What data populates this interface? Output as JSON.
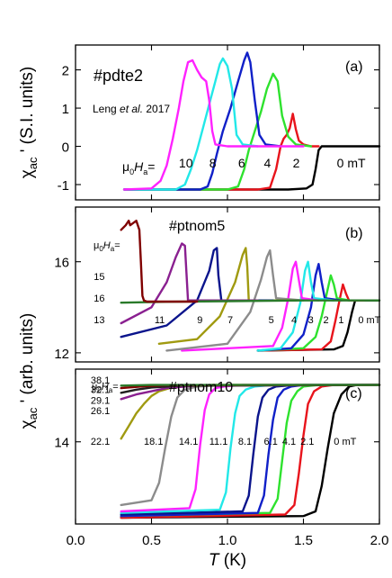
{
  "colors": {
    "m0": "#000000",
    "m2": "#e8141c",
    "m4": "#2ee22e",
    "m6": "#1020c8",
    "m8": "#22e8e8",
    "m10": "#ff22ff",
    "gray": "#8c8c8c",
    "olive": "#a09a10",
    "navy": "#0a148c",
    "purple": "#8a2090",
    "maroon": "#800000"
  },
  "chart_data": [
    {
      "type": "line",
      "panel": "(a)",
      "sample": "#pdte2",
      "note_prefix": "Leng ",
      "note_italic": "et al.",
      "note_suffix": " 2017",
      "ylabel_main": "χ",
      "ylabel_sub": "ac",
      "ylabel_rest": " ' (S.I. units)",
      "ylim": [
        -1.4,
        2.65
      ],
      "xlim": [
        0.0,
        2.0
      ],
      "yticks": [
        -1,
        0,
        1,
        2
      ],
      "yticklabels": [
        "-1",
        "0",
        "1",
        "2"
      ],
      "field_prefix_a": "μ",
      "field_prefix_b": "0",
      "field_prefix_c": "H",
      "field_prefix_d": "a",
      "field_prefix_e": "=",
      "series": [
        {
          "field": "0 mT",
          "color": "#000000",
          "x": [
            0.32,
            1.4,
            1.52,
            1.56,
            1.58,
            1.6,
            1.62,
            1.64,
            1.7,
            2.0
          ],
          "y": [
            -1.13,
            -1.13,
            -1.1,
            -1.0,
            -0.6,
            -0.1,
            0,
            0,
            0,
            0
          ]
        },
        {
          "field": "2",
          "color": "#e8141c",
          "x": [
            0.32,
            1.2,
            1.28,
            1.32,
            1.35,
            1.37,
            1.39,
            1.41,
            1.43,
            1.45,
            1.47,
            1.5,
            1.55,
            1.6
          ],
          "y": [
            -1.13,
            -1.13,
            -1.08,
            -0.6,
            0,
            0.2,
            0.3,
            0.48,
            0.85,
            0.45,
            0.15,
            0.05,
            0,
            0
          ]
        },
        {
          "field": "4",
          "color": "#2ee22e",
          "x": [
            0.32,
            1.0,
            1.07,
            1.11,
            1.14,
            1.18,
            1.22,
            1.26,
            1.3,
            1.33,
            1.36,
            1.4,
            1.45,
            1.55
          ],
          "y": [
            -1.13,
            -1.13,
            -1.05,
            -0.6,
            -0.1,
            0.4,
            0.9,
            1.5,
            1.9,
            1.7,
            0.8,
            0.25,
            0.05,
            0
          ]
        },
        {
          "field": "6",
          "color": "#1020c8",
          "x": [
            0.32,
            0.82,
            0.87,
            0.9,
            0.93,
            0.97,
            1.02,
            1.07,
            1.11,
            1.13,
            1.15,
            1.18,
            1.21,
            1.25,
            1.35
          ],
          "y": [
            -1.13,
            -1.13,
            -1.05,
            -0.7,
            -0.2,
            0.4,
            1.0,
            1.7,
            2.25,
            2.45,
            2.2,
            1.2,
            0.3,
            0.05,
            0
          ]
        },
        {
          "field": "8",
          "color": "#22e8e8",
          "x": [
            0.32,
            0.66,
            0.72,
            0.76,
            0.8,
            0.84,
            0.88,
            0.92,
            0.95,
            0.97,
            1.0,
            1.03,
            1.06,
            1.1,
            1.2
          ],
          "y": [
            -1.13,
            -1.13,
            -1.0,
            -0.6,
            -0.1,
            0.5,
            1.1,
            1.7,
            2.15,
            2.3,
            2.1,
            1.5,
            0.3,
            0.05,
            0
          ]
        },
        {
          "field": "10",
          "color": "#ff22ff",
          "x": [
            0.32,
            0.5,
            0.56,
            0.6,
            0.64,
            0.68,
            0.71,
            0.74,
            0.77,
            0.8,
            0.83,
            0.86,
            0.88,
            0.9,
            0.92,
            1.0,
            1.5
          ],
          "y": [
            -1.13,
            -1.1,
            -0.9,
            -0.5,
            0.2,
            1.0,
            1.7,
            2.2,
            2.25,
            2.0,
            1.8,
            1.7,
            1.2,
            0.4,
            0.05,
            0,
            0
          ]
        }
      ]
    },
    {
      "type": "line",
      "panel": "(b)",
      "sample": "#ptnom5",
      "ylabel_main": "χ",
      "ylabel_sub": "ac",
      "ylabel_rest": " ' (arb. units)",
      "ylim": [
        11.6,
        18.4
      ],
      "xlim": [
        0.0,
        2.0
      ],
      "yticks": [
        12,
        16
      ],
      "yticklabels": [
        "12",
        "16"
      ],
      "field_prefix_a": "μ",
      "field_prefix_b": "0",
      "field_prefix_c": "H",
      "field_prefix_d": "a",
      "field_prefix_e": "=",
      "series": [
        {
          "field": "0 mT",
          "color": "#000000",
          "x": [
            1.2,
            1.7,
            1.76,
            1.79,
            1.82,
            1.84,
            1.9,
            2.0
          ],
          "y": [
            12.1,
            12.15,
            12.3,
            12.9,
            13.8,
            14.3,
            14.3,
            14.3
          ]
        },
        {
          "field": "1",
          "color": "#e8141c",
          "x": [
            1.2,
            1.62,
            1.68,
            1.71,
            1.74,
            1.76,
            1.78,
            1.8,
            1.9
          ],
          "y": [
            12.1,
            12.15,
            12.5,
            13.4,
            14.4,
            15.0,
            14.6,
            14.3,
            14.3
          ]
        },
        {
          "field": "2",
          "color": "#2ee22e",
          "x": [
            1.2,
            1.5,
            1.58,
            1.62,
            1.66,
            1.68,
            1.7,
            1.72,
            1.8
          ],
          "y": [
            12.1,
            12.2,
            12.7,
            13.6,
            14.8,
            15.4,
            15.0,
            14.4,
            14.3
          ]
        },
        {
          "field": "3",
          "color": "#1020c8",
          "x": [
            1.2,
            1.42,
            1.5,
            1.55,
            1.58,
            1.6,
            1.62,
            1.64,
            1.75
          ],
          "y": [
            12.1,
            12.2,
            12.8,
            14.0,
            15.4,
            15.9,
            15.1,
            14.4,
            14.3
          ]
        },
        {
          "field": "4",
          "color": "#22e8e8",
          "x": [
            1.2,
            1.35,
            1.43,
            1.48,
            1.51,
            1.53,
            1.55,
            1.57,
            1.7
          ],
          "y": [
            12.1,
            12.2,
            12.9,
            14.2,
            15.6,
            16.0,
            15.1,
            14.4,
            14.3
          ]
        },
        {
          "field": "",
          "color": "#ff22ff",
          "x": [
            0.7,
            1.3,
            1.36,
            1.4,
            1.43,
            1.45,
            1.47,
            1.49,
            1.6
          ],
          "y": [
            12.1,
            12.3,
            13.1,
            14.4,
            15.7,
            16.0,
            15.2,
            14.4,
            14.3
          ]
        },
        {
          "field": "5",
          "color": "#8c8c8c",
          "x": [
            0.6,
            1.0,
            1.15,
            1.22,
            1.26,
            1.28,
            1.3,
            1.32,
            1.5
          ],
          "y": [
            12.1,
            12.4,
            13.8,
            15.2,
            16.2,
            16.5,
            15.4,
            14.4,
            14.3
          ]
        },
        {
          "field": "7",
          "color": "#a09a10",
          "x": [
            0.55,
            0.8,
            0.95,
            1.05,
            1.1,
            1.12,
            1.13,
            1.14,
            1.2,
            1.45
          ],
          "y": [
            12.4,
            12.6,
            13.6,
            15.1,
            16.3,
            16.6,
            15.8,
            14.3,
            14.3,
            14.3
          ]
        },
        {
          "field": "9",
          "color": "#0a148c",
          "x": [
            0.3,
            0.6,
            0.8,
            0.88,
            0.91,
            0.93,
            0.94,
            0.96,
            1.0,
            1.3
          ],
          "y": [
            12.7,
            13.2,
            14.3,
            15.6,
            16.5,
            16.6,
            15.4,
            14.3,
            14.3,
            14.3
          ]
        },
        {
          "field": "11",
          "color": "#8a2090",
          "x": [
            0.3,
            0.5,
            0.6,
            0.66,
            0.7,
            0.72,
            0.73,
            0.74,
            0.8,
            1.2
          ],
          "y": [
            13.3,
            14.0,
            15.1,
            16.2,
            16.8,
            16.7,
            15.5,
            14.3,
            14.3,
            14.3
          ]
        },
        {
          "field": "16",
          "color": "#2a7a2a",
          "x": [
            0.3,
            0.6,
            1.0,
            1.5,
            2.0
          ],
          "y": [
            14.2,
            14.24,
            14.27,
            14.3,
            14.3
          ]
        },
        {
          "field": "15",
          "color": "#800000",
          "x": [
            0.3,
            0.33,
            0.35,
            0.36,
            0.38,
            0.4,
            0.42,
            0.43,
            0.44,
            0.45,
            0.47,
            0.6,
            0.8
          ],
          "y": [
            17.4,
            17.6,
            17.8,
            17.6,
            17.7,
            17.8,
            17.4,
            16.0,
            14.5,
            14.3,
            14.25,
            14.25,
            14.25
          ]
        }
      ]
    },
    {
      "type": "line",
      "panel": "(c)",
      "sample": "#ptnom10",
      "ylabel_main": "χ",
      "ylabel_sub": "ac",
      "ylabel_rest": " '",
      "ylim": [
        11.4,
        16.3
      ],
      "xlim": [
        0.0,
        2.0
      ],
      "yticks": [
        14
      ],
      "yticklabels": [
        "14"
      ],
      "xticks": [
        0.0,
        0.5,
        1.0,
        1.5,
        2.0
      ],
      "xticklabels": [
        "0.0",
        "0.5",
        "1.0",
        "1.5",
        "2.0"
      ],
      "xlabel_main": "T",
      "xlabel_rest": " (K)",
      "field_prefix_a": "μ",
      "field_prefix_b": "0",
      "field_prefix_c": "H",
      "field_prefix_d": "a",
      "field_prefix_e": "=",
      "series": [
        {
          "field": "0 mT",
          "color": "#000000",
          "x": [
            0.3,
            1.5,
            1.58,
            1.62,
            1.66,
            1.7,
            1.75,
            1.8,
            1.85,
            2.0
          ],
          "y": [
            11.6,
            11.65,
            11.8,
            12.6,
            13.8,
            14.9,
            15.5,
            15.75,
            15.8,
            15.8
          ]
        },
        {
          "field": "2.1",
          "color": "#e8141c",
          "x": [
            0.3,
            1.38,
            1.44,
            1.47,
            1.5,
            1.53,
            1.57,
            1.62,
            1.7,
            2.0
          ],
          "y": [
            11.6,
            11.7,
            12.0,
            13.0,
            14.2,
            15.2,
            15.6,
            15.75,
            15.8,
            15.8
          ]
        },
        {
          "field": "4.1",
          "color": "#2ee22e",
          "x": [
            0.3,
            1.28,
            1.33,
            1.36,
            1.39,
            1.42,
            1.46,
            1.5,
            1.6,
            2.0
          ],
          "y": [
            11.65,
            11.75,
            12.2,
            13.4,
            14.6,
            15.3,
            15.6,
            15.75,
            15.8,
            15.8
          ]
        },
        {
          "field": "6.1",
          "color": "#1020c8",
          "x": [
            0.3,
            1.2,
            1.24,
            1.27,
            1.3,
            1.33,
            1.37,
            1.42,
            1.5,
            2.0
          ],
          "y": [
            11.65,
            11.75,
            12.3,
            13.6,
            14.7,
            15.4,
            15.65,
            15.75,
            15.8,
            15.8
          ]
        },
        {
          "field": "8.1",
          "color": "#0a148c",
          "x": [
            0.3,
            1.1,
            1.14,
            1.17,
            1.2,
            1.23,
            1.27,
            1.32,
            1.45,
            2.0
          ],
          "y": [
            11.7,
            11.8,
            12.3,
            13.6,
            14.8,
            15.4,
            15.65,
            15.75,
            15.8,
            15.8
          ]
        },
        {
          "field": "11.1",
          "color": "#22e8e8",
          "x": [
            0.3,
            0.95,
            0.99,
            1.02,
            1.05,
            1.08,
            1.12,
            1.18,
            1.3,
            2.0
          ],
          "y": [
            11.75,
            11.85,
            12.4,
            13.8,
            14.9,
            15.45,
            15.65,
            15.75,
            15.8,
            15.8
          ]
        },
        {
          "field": "14.1",
          "color": "#ff22ff",
          "x": [
            0.3,
            0.75,
            0.79,
            0.82,
            0.85,
            0.88,
            0.92,
            0.98,
            1.1,
            2.0
          ],
          "y": [
            11.8,
            11.9,
            12.5,
            13.9,
            15.0,
            15.5,
            15.7,
            15.75,
            15.8,
            15.8
          ]
        },
        {
          "field": "18.1",
          "color": "#8c8c8c",
          "x": [
            0.3,
            0.5,
            0.55,
            0.59,
            0.63,
            0.67,
            0.72,
            0.8,
            1.0,
            2.0
          ],
          "y": [
            12.0,
            12.15,
            12.7,
            13.8,
            14.8,
            15.4,
            15.65,
            15.75,
            15.8,
            15.8
          ]
        },
        {
          "field": "22.1",
          "color": "#a09a10",
          "x": [
            0.3,
            0.35,
            0.4,
            0.45,
            0.5,
            0.55,
            0.62,
            0.7,
            0.9,
            2.0
          ],
          "y": [
            14.1,
            14.5,
            14.9,
            15.2,
            15.45,
            15.6,
            15.7,
            15.75,
            15.8,
            15.8
          ]
        },
        {
          "field": "26.1",
          "color": "#8a2090",
          "x": [
            0.3,
            0.4,
            0.5,
            0.6,
            0.8,
            2.0
          ],
          "y": [
            15.35,
            15.5,
            15.6,
            15.7,
            15.78,
            15.8
          ]
        },
        {
          "field": "29.1",
          "color": "#202020",
          "x": [
            0.3,
            0.4,
            0.5,
            0.7,
            2.0
          ],
          "y": [
            15.55,
            15.65,
            15.72,
            15.78,
            15.8
          ]
        },
        {
          "field": "32.1",
          "color": "#800000",
          "x": [
            0.3,
            0.45,
            0.6,
            2.0
          ],
          "y": [
            15.7,
            15.76,
            15.79,
            15.8
          ]
        },
        {
          "field": "38.1",
          "color": "#2a7a2a",
          "x": [
            0.3,
            0.5,
            2.0
          ],
          "y": [
            15.78,
            15.8,
            15.8
          ]
        }
      ]
    }
  ],
  "labels_a": [
    {
      "text": "10",
      "x": 0.68,
      "y": -0.55
    },
    {
      "text": "8",
      "x": 0.88,
      "y": -0.55
    },
    {
      "text": "6",
      "x": 1.07,
      "y": -0.55
    },
    {
      "text": "4",
      "x": 1.24,
      "y": -0.55
    },
    {
      "text": "2",
      "x": 1.43,
      "y": -0.55
    },
    {
      "text": "0 mT",
      "x": 1.72,
      "y": -0.55
    }
  ],
  "labels_b": [
    {
      "text": "15",
      "x": 0.12,
      "y": 15.2
    },
    {
      "text": "16",
      "x": 0.12,
      "y": 14.25
    },
    {
      "text": "13",
      "x": 0.12,
      "y": 13.3
    },
    {
      "text": "11",
      "x": 0.52,
      "y": 13.3
    },
    {
      "text": "9",
      "x": 0.8,
      "y": 13.3
    },
    {
      "text": "7",
      "x": 1.0,
      "y": 13.3
    },
    {
      "text": "5",
      "x": 1.27,
      "y": 13.3
    },
    {
      "text": "4",
      "x": 1.42,
      "y": 13.3
    },
    {
      "text": "3",
      "x": 1.53,
      "y": 13.3
    },
    {
      "text": "2",
      "x": 1.63,
      "y": 13.3
    },
    {
      "text": "1",
      "x": 1.73,
      "y": 13.3
    },
    {
      "text": "0 mT",
      "x": 1.86,
      "y": 13.3
    }
  ],
  "labels_c": [
    {
      "text": "38.1",
      "x": 0.1,
      "y": 15.85
    },
    {
      "text": "32.1",
      "x": 0.1,
      "y": 15.55
    },
    {
      "text": "29.1",
      "x": 0.1,
      "y": 15.2
    },
    {
      "text": "26.1",
      "x": 0.1,
      "y": 14.88
    },
    {
      "text": "22.1",
      "x": 0.1,
      "y": 13.9
    },
    {
      "text": "18.1",
      "x": 0.45,
      "y": 13.9
    },
    {
      "text": "14.1",
      "x": 0.68,
      "y": 13.9
    },
    {
      "text": "11.1",
      "x": 0.88,
      "y": 13.9
    },
    {
      "text": "8.1",
      "x": 1.07,
      "y": 13.9
    },
    {
      "text": "6.1",
      "x": 1.24,
      "y": 13.9
    },
    {
      "text": "4.1",
      "x": 1.36,
      "y": 13.9
    },
    {
      "text": "2.1",
      "x": 1.48,
      "y": 13.9
    },
    {
      "text": "0 mT",
      "x": 1.7,
      "y": 13.9
    }
  ]
}
